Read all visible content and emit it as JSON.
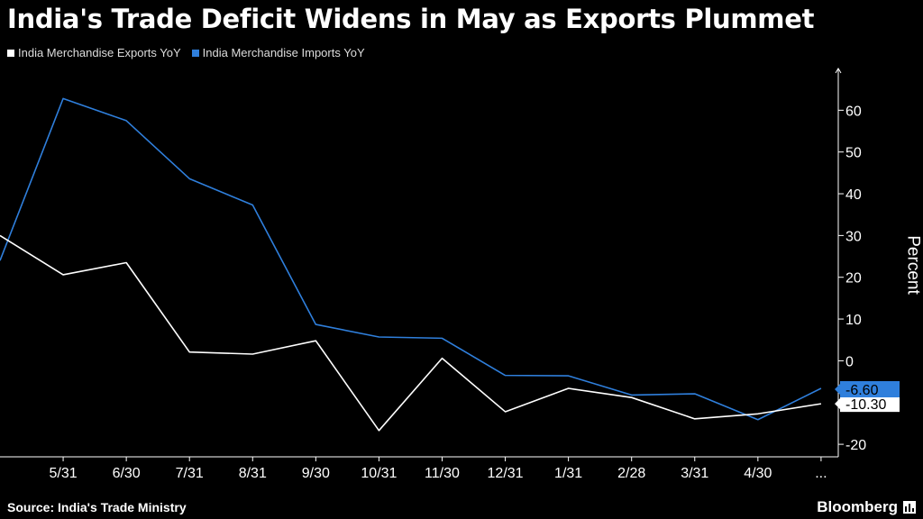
{
  "title": "India's Trade Deficit Widens in May as Exports Plummet",
  "source": "Source: India's Trade Ministry",
  "brand": "Bloomberg",
  "colors": {
    "exports": "#ffffff",
    "imports": "#2f7fdc",
    "background": "#000000"
  },
  "chart_data": {
    "type": "line",
    "title": "India's Trade Deficit Widens in May as Exports Plummet",
    "ylabel": "Percent",
    "ylim": [
      -23,
      70
    ],
    "yticks": [
      60,
      50,
      40,
      30,
      20,
      10,
      0,
      -10,
      -20
    ],
    "categories": [
      "4/30",
      "5/31",
      "6/30",
      "7/31",
      "8/31",
      "9/30",
      "10/31",
      "11/30",
      "12/31",
      "1/31",
      "2/28",
      "3/31",
      "4/30",
      "5/31"
    ],
    "xtick_labels": [
      "5/31",
      "6/30",
      "7/31",
      "8/31",
      "9/30",
      "10/31",
      "11/30",
      "12/31",
      "1/31",
      "2/28",
      "3/31",
      "4/30",
      "..."
    ],
    "series": [
      {
        "name": "India Merchandise Exports YoY",
        "color": "#ffffff",
        "values": [
          30.0,
          20.6,
          23.5,
          2.1,
          1.6,
          4.8,
          -16.7,
          0.6,
          -12.2,
          -6.6,
          -8.8,
          -13.9,
          -12.7,
          -10.3
        ],
        "last_label": "-10.30"
      },
      {
        "name": "India Merchandise Imports YoY",
        "color": "#2f7fdc",
        "values": [
          24.0,
          62.8,
          57.5,
          43.6,
          37.3,
          8.7,
          5.7,
          5.4,
          -3.5,
          -3.6,
          -8.2,
          -7.9,
          -14.1,
          -6.6
        ],
        "last_label": "-6.60"
      }
    ],
    "grid": false,
    "legend": "top-left"
  }
}
